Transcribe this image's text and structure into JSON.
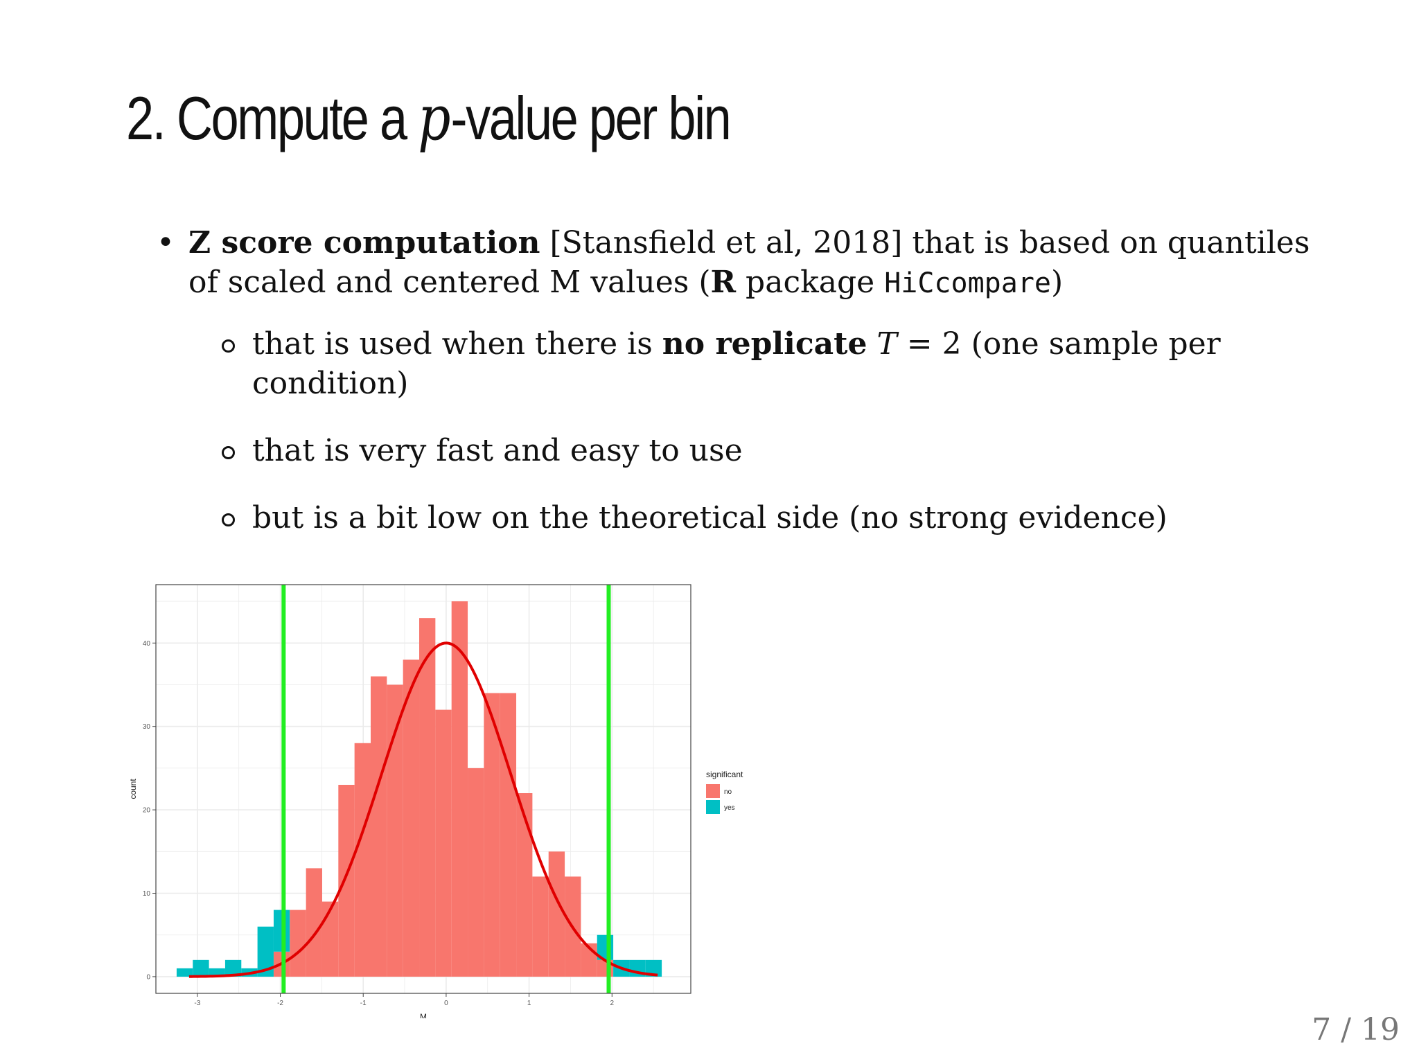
{
  "slide": {
    "title_pre": "2. Compute a ",
    "title_math": "p",
    "title_post": "-value per bin",
    "bullet1": {
      "bold": "Z score computation",
      "text1": " [Stansfield et al, 2018] that is based on quantiles of scaled and centered M values (",
      "bold2": "R",
      "text2": " package ",
      "code": "HiCcompare",
      "text3": ")"
    },
    "sub1": {
      "text1": "that is used when there is ",
      "bold": "no replicate",
      "math_T": "T",
      "math_eq": " = 2",
      "text2": " (one sample per condition)"
    },
    "sub2": "that is very fast and easy to use",
    "sub3": "but is a bit low on the theoretical side (no strong evidence)",
    "page_number": "7 / 19"
  },
  "chart_data": {
    "type": "bar",
    "subtype": "histogram",
    "xlabel": "M",
    "ylabel": "count",
    "xlim": [
      -3.5,
      2.95
    ],
    "ylim": [
      -2,
      47
    ],
    "xticks": [
      -3,
      -2,
      -1,
      0,
      1,
      2
    ],
    "yticks": [
      0,
      10,
      20,
      30,
      40
    ],
    "bin_width": 0.195,
    "bin_start": -3.25,
    "bins": [
      {
        "x0": -3.25,
        "no": 0,
        "yes": 1
      },
      {
        "x0": -3.055,
        "no": 0,
        "yes": 2
      },
      {
        "x0": -2.86,
        "no": 0,
        "yes": 1
      },
      {
        "x0": -2.665,
        "no": 0,
        "yes": 2
      },
      {
        "x0": -2.47,
        "no": 0,
        "yes": 1
      },
      {
        "x0": -2.275,
        "no": 0,
        "yes": 6
      },
      {
        "x0": -2.08,
        "no": 3,
        "yes": 5
      },
      {
        "x0": -1.885,
        "no": 8,
        "yes": 0
      },
      {
        "x0": -1.69,
        "no": 13,
        "yes": 0
      },
      {
        "x0": -1.495,
        "no": 9,
        "yes": 0
      },
      {
        "x0": -1.3,
        "no": 23,
        "yes": 0
      },
      {
        "x0": -1.105,
        "no": 28,
        "yes": 0
      },
      {
        "x0": -0.91,
        "no": 36,
        "yes": 0
      },
      {
        "x0": -0.715,
        "no": 35,
        "yes": 0
      },
      {
        "x0": -0.52,
        "no": 38,
        "yes": 0
      },
      {
        "x0": -0.325,
        "no": 43,
        "yes": 0
      },
      {
        "x0": -0.13,
        "no": 32,
        "yes": 0
      },
      {
        "x0": 0.065,
        "no": 45,
        "yes": 0
      },
      {
        "x0": 0.26,
        "no": 25,
        "yes": 0
      },
      {
        "x0": 0.455,
        "no": 34,
        "yes": 0
      },
      {
        "x0": 0.65,
        "no": 34,
        "yes": 0
      },
      {
        "x0": 0.845,
        "no": 22,
        "yes": 0
      },
      {
        "x0": 1.04,
        "no": 12,
        "yes": 0
      },
      {
        "x0": 1.235,
        "no": 15,
        "yes": 0
      },
      {
        "x0": 1.43,
        "no": 12,
        "yes": 0
      },
      {
        "x0": 1.625,
        "no": 4,
        "yes": 0
      },
      {
        "x0": 1.82,
        "no": 2,
        "yes": 3
      },
      {
        "x0": 2.015,
        "no": 0,
        "yes": 2
      },
      {
        "x0": 2.21,
        "no": 0,
        "yes": 2
      },
      {
        "x0": 2.405,
        "no": 0,
        "yes": 2
      }
    ],
    "normal_curve": {
      "mean": 0,
      "sd": 0.78,
      "peak": 40,
      "x_from": -3.1,
      "x_to": 2.55
    },
    "vlines": [
      -1.96,
      1.96
    ],
    "legend": {
      "title": "significant",
      "placement": "right",
      "entries": [
        {
          "label": "no",
          "color": "#F8766D"
        },
        {
          "label": "yes",
          "color": "#00BFC4"
        }
      ]
    },
    "colors": {
      "no": "#F8766D",
      "yes": "#00BFC4",
      "curve": "#E00000",
      "vline": "#22EE22",
      "grid": "#EBEBEB"
    }
  }
}
